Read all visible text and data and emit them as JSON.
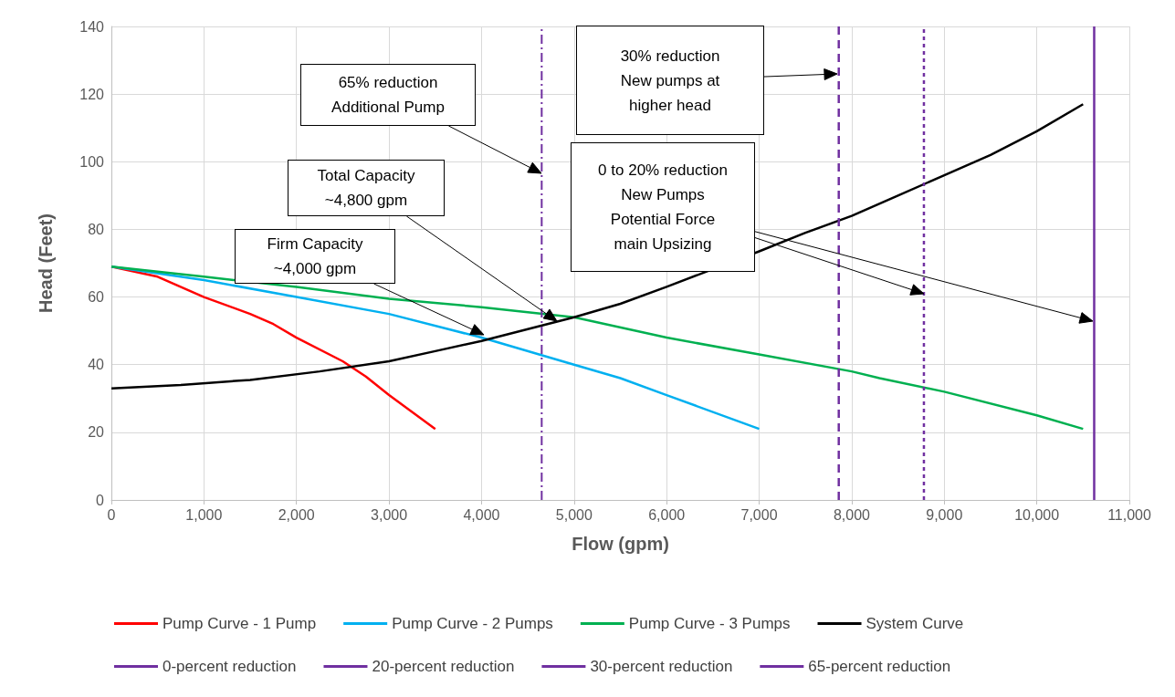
{
  "chart_data": {
    "type": "line",
    "xlabel": "Flow (gpm)",
    "ylabel": "Head (Feet)",
    "xlim": [
      0,
      11000
    ],
    "xticks": [
      0,
      {
        "value": 1000,
        "label": "1,000"
      },
      {
        "value": 2000,
        "label": "2,000"
      },
      {
        "value": 3000,
        "label": "3,000"
      },
      {
        "value": 4000,
        "label": "4,000"
      },
      {
        "value": 5000,
        "label": "5,000"
      },
      {
        "value": 6000,
        "label": "6,000"
      },
      {
        "value": 7000,
        "label": "7,000"
      },
      {
        "value": 8000,
        "label": "8,000"
      },
      {
        "value": 9000,
        "label": "9,000"
      },
      {
        "value": 10000,
        "label": "10,000"
      },
      {
        "value": 11000,
        "label": "11,000"
      }
    ],
    "ylim": [
      0,
      140
    ],
    "yticks": [
      0,
      20,
      40,
      60,
      80,
      100,
      120,
      140
    ],
    "grid": true,
    "legend": "bottom",
    "marker": "none",
    "series": [
      {
        "name": "Pump Curve - 1 Pump",
        "color": "#ff0000",
        "line_style": "solid",
        "x": [
          0,
          500,
          1000,
          1500,
          1750,
          2000,
          2500,
          2750,
          3000,
          3500
        ],
        "values": [
          69,
          66,
          60,
          55,
          52,
          48,
          41,
          36.5,
          31,
          21
        ]
      },
      {
        "name": "Pump Curve - 2 Pumps",
        "color": "#00b0f0",
        "line_style": "solid",
        "x": [
          0,
          1000,
          2000,
          3000,
          4000,
          5000,
          5500,
          6000,
          7000
        ],
        "values": [
          69,
          65,
          60,
          55,
          48,
          40,
          36,
          31,
          21
        ]
      },
      {
        "name": "Pump Curve - 3 Pumps",
        "color": "#00b050",
        "line_style": "solid",
        "x": [
          0,
          1000,
          2000,
          3000,
          4000,
          5000,
          6000,
          7000,
          8000,
          8300,
          9000,
          10000,
          10500
        ],
        "values": [
          69,
          66,
          63,
          59.5,
          57,
          54,
          48,
          43,
          38,
          36,
          32,
          25,
          21
        ]
      },
      {
        "name": "System Curve",
        "color": "#000000",
        "line_style": "solid",
        "x": [
          0,
          750,
          1500,
          2250,
          3000,
          3500,
          4000,
          4500,
          5000,
          5500,
          6000,
          7000,
          7500,
          8000,
          8500,
          9000,
          9500,
          10000,
          10500
        ],
        "values": [
          33,
          34,
          35.5,
          38,
          41,
          44,
          47,
          50.5,
          54,
          58,
          63,
          73.5,
          79,
          84,
          90,
          96,
          102,
          109,
          117
        ]
      },
      {
        "name": "0-percent reduction",
        "color": "#7030a0",
        "line_style": "solid",
        "x": [
          10620,
          10620
        ],
        "values": [
          0,
          140
        ]
      },
      {
        "name": "20-percent reduction",
        "color": "#7030a0",
        "line_style": "dotted",
        "x": [
          8780,
          8780
        ],
        "values": [
          0,
          140
        ]
      },
      {
        "name": "30-percent reduction",
        "color": "#7030a0",
        "line_style": "dashed",
        "x": [
          7860,
          7860
        ],
        "values": [
          0,
          140
        ]
      },
      {
        "name": "65-percent reduction",
        "color": "#7030a0",
        "line_style": "dashdot",
        "x": [
          4650,
          4650
        ],
        "values": [
          0,
          140
        ]
      }
    ],
    "annotations": [
      "Firm Capacity\n~4,000 gpm",
      "Total Capacity\n~4,800 gpm",
      "65% reduction\nAdditional Pump",
      "30% reduction\nNew pumps at\nhigher head",
      "0 to 20% reduction\nNew Pumps\nPotential Force\nmain Upsizing"
    ]
  }
}
